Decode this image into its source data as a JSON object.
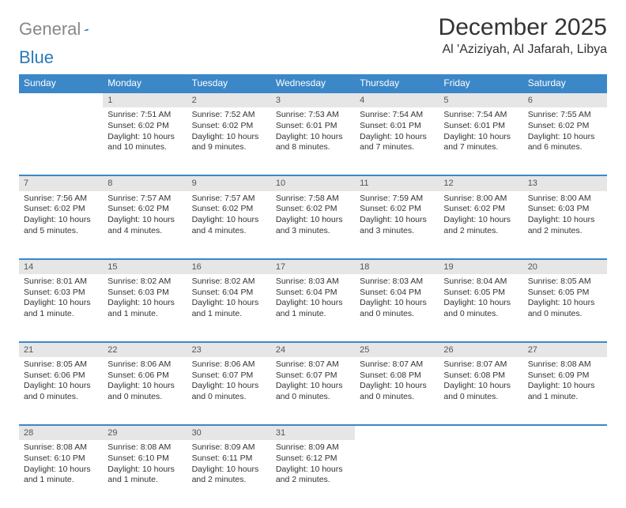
{
  "logo": {
    "text1": "General",
    "text2": "Blue"
  },
  "title": "December 2025",
  "location": "Al 'Aziziyah, Al Jafarah, Libya",
  "colors": {
    "header_bg": "#3b87c8",
    "header_text": "#ffffff",
    "daynum_bg": "#e6e6e6",
    "row_border": "#3b87c8",
    "text": "#333333",
    "logo_gray": "#888888",
    "logo_blue": "#2a7ab8",
    "page_bg": "#ffffff"
  },
  "weekdays": [
    "Sunday",
    "Monday",
    "Tuesday",
    "Wednesday",
    "Thursday",
    "Friday",
    "Saturday"
  ],
  "weeks": [
    [
      {
        "empty": true
      },
      {
        "day": "1",
        "sunrise": "Sunrise: 7:51 AM",
        "sunset": "Sunset: 6:02 PM",
        "daylight": "Daylight: 10 hours and 10 minutes."
      },
      {
        "day": "2",
        "sunrise": "Sunrise: 7:52 AM",
        "sunset": "Sunset: 6:02 PM",
        "daylight": "Daylight: 10 hours and 9 minutes."
      },
      {
        "day": "3",
        "sunrise": "Sunrise: 7:53 AM",
        "sunset": "Sunset: 6:01 PM",
        "daylight": "Daylight: 10 hours and 8 minutes."
      },
      {
        "day": "4",
        "sunrise": "Sunrise: 7:54 AM",
        "sunset": "Sunset: 6:01 PM",
        "daylight": "Daylight: 10 hours and 7 minutes."
      },
      {
        "day": "5",
        "sunrise": "Sunrise: 7:54 AM",
        "sunset": "Sunset: 6:01 PM",
        "daylight": "Daylight: 10 hours and 7 minutes."
      },
      {
        "day": "6",
        "sunrise": "Sunrise: 7:55 AM",
        "sunset": "Sunset: 6:02 PM",
        "daylight": "Daylight: 10 hours and 6 minutes."
      }
    ],
    [
      {
        "day": "7",
        "sunrise": "Sunrise: 7:56 AM",
        "sunset": "Sunset: 6:02 PM",
        "daylight": "Daylight: 10 hours and 5 minutes."
      },
      {
        "day": "8",
        "sunrise": "Sunrise: 7:57 AM",
        "sunset": "Sunset: 6:02 PM",
        "daylight": "Daylight: 10 hours and 4 minutes."
      },
      {
        "day": "9",
        "sunrise": "Sunrise: 7:57 AM",
        "sunset": "Sunset: 6:02 PM",
        "daylight": "Daylight: 10 hours and 4 minutes."
      },
      {
        "day": "10",
        "sunrise": "Sunrise: 7:58 AM",
        "sunset": "Sunset: 6:02 PM",
        "daylight": "Daylight: 10 hours and 3 minutes."
      },
      {
        "day": "11",
        "sunrise": "Sunrise: 7:59 AM",
        "sunset": "Sunset: 6:02 PM",
        "daylight": "Daylight: 10 hours and 3 minutes."
      },
      {
        "day": "12",
        "sunrise": "Sunrise: 8:00 AM",
        "sunset": "Sunset: 6:02 PM",
        "daylight": "Daylight: 10 hours and 2 minutes."
      },
      {
        "day": "13",
        "sunrise": "Sunrise: 8:00 AM",
        "sunset": "Sunset: 6:03 PM",
        "daylight": "Daylight: 10 hours and 2 minutes."
      }
    ],
    [
      {
        "day": "14",
        "sunrise": "Sunrise: 8:01 AM",
        "sunset": "Sunset: 6:03 PM",
        "daylight": "Daylight: 10 hours and 1 minute."
      },
      {
        "day": "15",
        "sunrise": "Sunrise: 8:02 AM",
        "sunset": "Sunset: 6:03 PM",
        "daylight": "Daylight: 10 hours and 1 minute."
      },
      {
        "day": "16",
        "sunrise": "Sunrise: 8:02 AM",
        "sunset": "Sunset: 6:04 PM",
        "daylight": "Daylight: 10 hours and 1 minute."
      },
      {
        "day": "17",
        "sunrise": "Sunrise: 8:03 AM",
        "sunset": "Sunset: 6:04 PM",
        "daylight": "Daylight: 10 hours and 1 minute."
      },
      {
        "day": "18",
        "sunrise": "Sunrise: 8:03 AM",
        "sunset": "Sunset: 6:04 PM",
        "daylight": "Daylight: 10 hours and 0 minutes."
      },
      {
        "day": "19",
        "sunrise": "Sunrise: 8:04 AM",
        "sunset": "Sunset: 6:05 PM",
        "daylight": "Daylight: 10 hours and 0 minutes."
      },
      {
        "day": "20",
        "sunrise": "Sunrise: 8:05 AM",
        "sunset": "Sunset: 6:05 PM",
        "daylight": "Daylight: 10 hours and 0 minutes."
      }
    ],
    [
      {
        "day": "21",
        "sunrise": "Sunrise: 8:05 AM",
        "sunset": "Sunset: 6:06 PM",
        "daylight": "Daylight: 10 hours and 0 minutes."
      },
      {
        "day": "22",
        "sunrise": "Sunrise: 8:06 AM",
        "sunset": "Sunset: 6:06 PM",
        "daylight": "Daylight: 10 hours and 0 minutes."
      },
      {
        "day": "23",
        "sunrise": "Sunrise: 8:06 AM",
        "sunset": "Sunset: 6:07 PM",
        "daylight": "Daylight: 10 hours and 0 minutes."
      },
      {
        "day": "24",
        "sunrise": "Sunrise: 8:07 AM",
        "sunset": "Sunset: 6:07 PM",
        "daylight": "Daylight: 10 hours and 0 minutes."
      },
      {
        "day": "25",
        "sunrise": "Sunrise: 8:07 AM",
        "sunset": "Sunset: 6:08 PM",
        "daylight": "Daylight: 10 hours and 0 minutes."
      },
      {
        "day": "26",
        "sunrise": "Sunrise: 8:07 AM",
        "sunset": "Sunset: 6:08 PM",
        "daylight": "Daylight: 10 hours and 0 minutes."
      },
      {
        "day": "27",
        "sunrise": "Sunrise: 8:08 AM",
        "sunset": "Sunset: 6:09 PM",
        "daylight": "Daylight: 10 hours and 1 minute."
      }
    ],
    [
      {
        "day": "28",
        "sunrise": "Sunrise: 8:08 AM",
        "sunset": "Sunset: 6:10 PM",
        "daylight": "Daylight: 10 hours and 1 minute."
      },
      {
        "day": "29",
        "sunrise": "Sunrise: 8:08 AM",
        "sunset": "Sunset: 6:10 PM",
        "daylight": "Daylight: 10 hours and 1 minute."
      },
      {
        "day": "30",
        "sunrise": "Sunrise: 8:09 AM",
        "sunset": "Sunset: 6:11 PM",
        "daylight": "Daylight: 10 hours and 2 minutes."
      },
      {
        "day": "31",
        "sunrise": "Sunrise: 8:09 AM",
        "sunset": "Sunset: 6:12 PM",
        "daylight": "Daylight: 10 hours and 2 minutes."
      },
      {
        "empty": true
      },
      {
        "empty": true
      },
      {
        "empty": true
      }
    ]
  ]
}
